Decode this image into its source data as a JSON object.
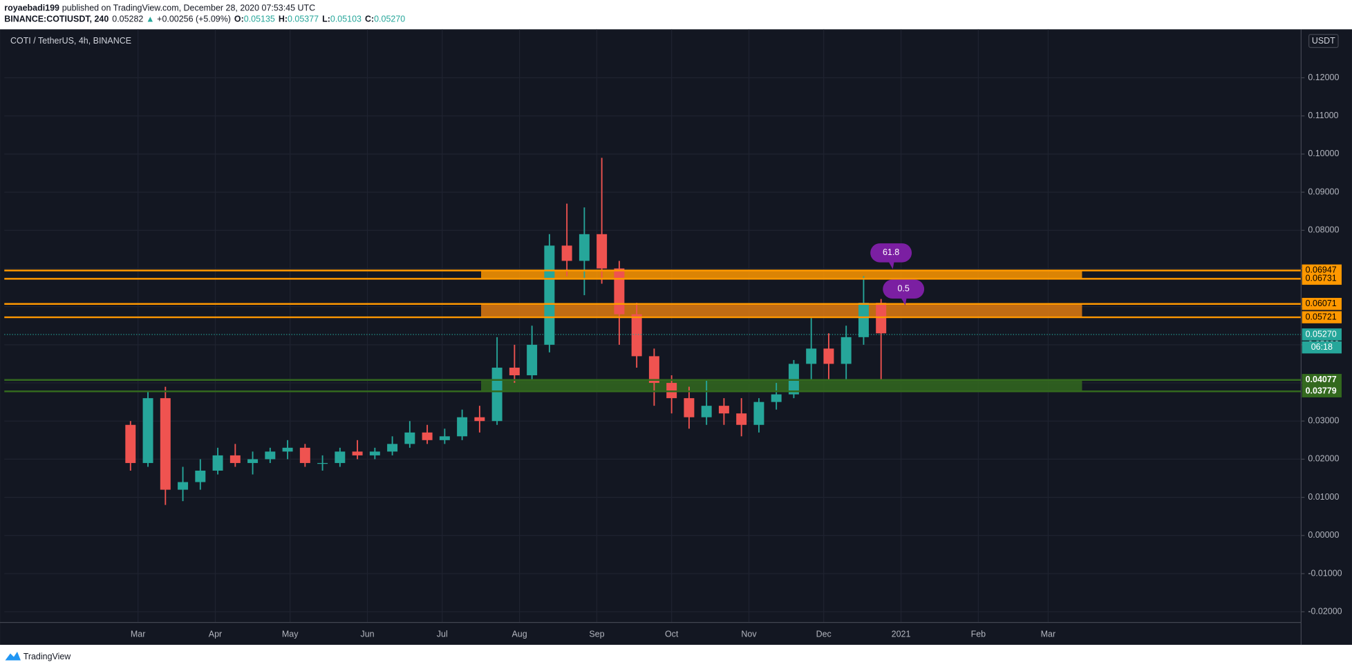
{
  "header": {
    "publisher": "royaebadi199",
    "published": "published on TradingView.com, December 28, 2020 07:53:45 UTC"
  },
  "quote": {
    "symbol": "BINANCE:COTIUSDT, 240",
    "last": "0.05282",
    "arrow": "▲",
    "change": "+0.00256 (+5.09%)",
    "open_label": "O:",
    "open": "0.05135",
    "high_label": "H:",
    "high": "0.05377",
    "low_label": "L:",
    "low": "0.05103",
    "close_label": "C:",
    "close": "0.05270"
  },
  "chart_data": {
    "type": "candlestick",
    "title": "COTI / TetherUS, 4h, BINANCE",
    "currency": "USDT",
    "x": [
      -3,
      4,
      11,
      18,
      25,
      32,
      39,
      46,
      53,
      60,
      67,
      74,
      81,
      88,
      95,
      102,
      109,
      116,
      123,
      130,
      137,
      144,
      151,
      158,
      165,
      172,
      179,
      186,
      193,
      200,
      207,
      214,
      221,
      228,
      235,
      242,
      249,
      256,
      263,
      270,
      277,
      284,
      291,
      298
    ],
    "open": [
      0.029,
      0.019,
      0.036,
      0.012,
      0.014,
      0.017,
      0.021,
      0.019,
      0.02,
      0.022,
      0.023,
      0.019,
      0.019,
      0.022,
      0.021,
      0.022,
      0.024,
      0.027,
      0.025,
      0.026,
      0.031,
      0.03,
      0.044,
      0.042,
      0.05,
      0.076,
      0.072,
      0.079,
      0.07,
      0.058,
      0.047,
      0.04,
      0.036,
      0.031,
      0.034,
      0.032,
      0.029,
      0.035,
      0.037,
      0.045,
      0.049,
      0.045,
      0.052,
      0.061
    ],
    "high": [
      0.03,
      0.038,
      0.039,
      0.018,
      0.02,
      0.023,
      0.024,
      0.022,
      0.023,
      0.025,
      0.024,
      0.021,
      0.023,
      0.025,
      0.023,
      0.026,
      0.03,
      0.029,
      0.028,
      0.033,
      0.034,
      0.052,
      0.05,
      0.055,
      0.079,
      0.087,
      0.086,
      0.099,
      0.072,
      0.061,
      0.049,
      0.042,
      0.039,
      0.041,
      0.036,
      0.036,
      0.036,
      0.04,
      0.046,
      0.057,
      0.053,
      0.055,
      0.068,
      0.062
    ],
    "low": [
      0.017,
      0.018,
      0.008,
      0.009,
      0.012,
      0.016,
      0.018,
      0.016,
      0.019,
      0.02,
      0.018,
      0.017,
      0.018,
      0.02,
      0.02,
      0.021,
      0.023,
      0.024,
      0.024,
      0.025,
      0.027,
      0.029,
      0.04,
      0.041,
      0.048,
      0.068,
      0.063,
      0.066,
      0.05,
      0.044,
      0.034,
      0.032,
      0.028,
      0.029,
      0.029,
      0.026,
      0.027,
      0.033,
      0.036,
      0.041,
      0.041,
      0.041,
      0.05,
      0.041
    ],
    "close": [
      0.019,
      0.036,
      0.012,
      0.014,
      0.017,
      0.021,
      0.019,
      0.02,
      0.022,
      0.023,
      0.019,
      0.019,
      0.022,
      0.021,
      0.022,
      0.024,
      0.027,
      0.025,
      0.026,
      0.031,
      0.03,
      0.044,
      0.042,
      0.05,
      0.076,
      0.072,
      0.079,
      0.07,
      0.058,
      0.047,
      0.04,
      0.036,
      0.031,
      0.034,
      0.032,
      0.029,
      0.035,
      0.037,
      0.045,
      0.049,
      0.045,
      0.052,
      0.061,
      0.053
    ],
    "up_color": "#26a69a",
    "down_color": "#ef5350",
    "xlim": [
      -53.6,
      466.1
    ],
    "xticks": [
      {
        "value": 0,
        "label": "Mar"
      },
      {
        "value": 31,
        "label": "Apr"
      },
      {
        "value": 61,
        "label": "May"
      },
      {
        "value": 92,
        "label": "Jun"
      },
      {
        "value": 122,
        "label": "Jul"
      },
      {
        "value": 153,
        "label": "Aug"
      },
      {
        "value": 184,
        "label": "Sep"
      },
      {
        "value": 214,
        "label": "Oct"
      },
      {
        "value": 245,
        "label": "Nov"
      },
      {
        "value": 275,
        "label": "Dec"
      },
      {
        "value": 306,
        "label": "2021"
      },
      {
        "value": 337,
        "label": "Feb"
      },
      {
        "value": 365,
        "label": "Mar"
      }
    ],
    "ylim": [
      -0.0228,
      0.1318
    ],
    "yticks": [
      {
        "value": -0.02,
        "label": "-0.02000"
      },
      {
        "value": -0.01,
        "label": "-0.01000"
      },
      {
        "value": 0,
        "label": "0.00000"
      },
      {
        "value": 0.01,
        "label": "0.01000"
      },
      {
        "value": 0.02,
        "label": "0.02000"
      },
      {
        "value": 0.03,
        "label": "0.03000"
      },
      {
        "value": 0.04,
        "label": "0.04000"
      },
      {
        "value": 0.05,
        "label": "0.05000"
      },
      {
        "value": 0.06,
        "label": "0.06000"
      },
      {
        "value": 0.07,
        "label": "0.07000"
      },
      {
        "value": 0.08,
        "label": "0.08000"
      },
      {
        "value": 0.09,
        "label": "0.09000"
      },
      {
        "value": 0.1,
        "label": "0.10000"
      },
      {
        "value": 0.11,
        "label": "0.11000"
      },
      {
        "value": 0.12,
        "label": "0.12000"
      }
    ],
    "grid": true,
    "levels": [
      {
        "value": 0.06947,
        "color": "#ff9800"
      },
      {
        "value": 0.06731,
        "color": "#ff9800"
      },
      {
        "value": 0.06071,
        "color": "#ff9800"
      },
      {
        "value": 0.05721,
        "color": "#ff9800"
      },
      {
        "value": 0.04077,
        "color": "#33691e"
      },
      {
        "value": 0.03779,
        "color": "#33691e"
      }
    ],
    "zones": [
      {
        "from": 0.06731,
        "to": 0.06947,
        "start": 137.6,
        "end": 378.6,
        "color": "#ff9800"
      },
      {
        "from": 0.05721,
        "to": 0.06071,
        "start": 137.6,
        "end": 378.6,
        "color": "#e07b10"
      },
      {
        "from": 0.03779,
        "to": 0.04077,
        "start": 137.6,
        "end": 378.6,
        "color": "#33691e"
      }
    ],
    "last_price": {
      "value": 0.0527,
      "label": "0.05270"
    },
    "countdown": "06:18",
    "annotations": [
      {
        "text": "61.8",
        "x": 302,
        "y": 0.0741,
        "color": "#7b1fa2"
      },
      {
        "text": "0.5",
        "x": 307,
        "y": 0.0646,
        "color": "#7b1fa2"
      }
    ]
  },
  "footer": {
    "brand": "TradingView"
  }
}
